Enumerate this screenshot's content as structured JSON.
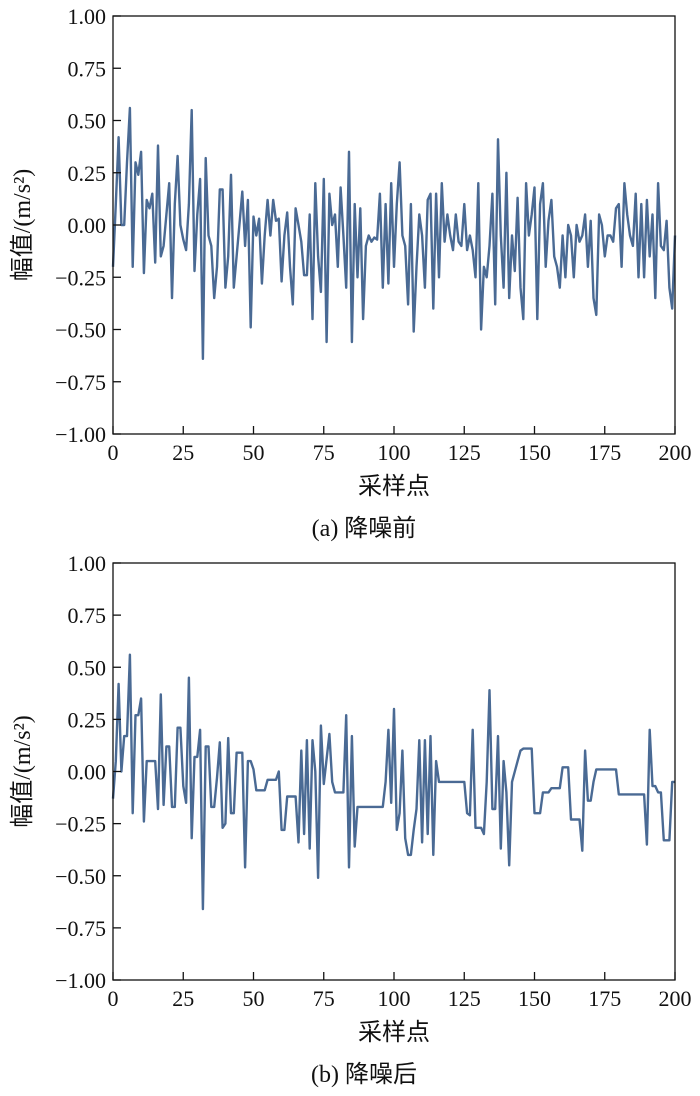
{
  "chart_data": [
    {
      "type": "line",
      "caption": "(a) 降噪前",
      "xlabel": "采样点",
      "ylabel": "幅值/(m/s²)",
      "xlim": [
        0,
        200
      ],
      "ylim": [
        -1,
        1
      ],
      "xticks": [
        "0",
        "25",
        "50",
        "75",
        "100",
        "125",
        "150",
        "175",
        "200"
      ],
      "yticks": [
        "1.00",
        "0.75",
        "0.50",
        "0.25",
        "0.00",
        "−0.25",
        "−0.50",
        "−0.75",
        "−1.00"
      ],
      "grid": false,
      "color": "#4a6a94",
      "series": [
        {
          "name": "降噪前",
          "values": [
            -0.2,
            0.1,
            0.42,
            0.0,
            0.0,
            0.3,
            0.56,
            -0.2,
            0.3,
            0.24,
            0.35,
            -0.23,
            0.12,
            0.08,
            0.15,
            -0.18,
            0.38,
            -0.15,
            -0.1,
            0.05,
            0.2,
            -0.35,
            0.1,
            0.33,
            0.0,
            -0.07,
            -0.12,
            0.1,
            0.55,
            -0.22,
            0.05,
            0.22,
            -0.64,
            0.32,
            -0.05,
            -0.1,
            -0.35,
            -0.2,
            0.17,
            0.17,
            -0.3,
            -0.15,
            0.24,
            -0.3,
            -0.15,
            0.0,
            0.16,
            -0.1,
            0.12,
            -0.49,
            0.04,
            -0.05,
            0.03,
            -0.28,
            -0.05,
            0.12,
            -0.05,
            0.12,
            0.02,
            0.03,
            -0.27,
            -0.05,
            0.06,
            -0.2,
            -0.38,
            0.08,
            0.0,
            -0.08,
            -0.24,
            -0.24,
            0.05,
            -0.45,
            0.2,
            -0.15,
            -0.32,
            0.22,
            -0.56,
            0.15,
            0.0,
            0.05,
            -0.2,
            0.18,
            -0.05,
            -0.3,
            0.35,
            -0.56,
            0.1,
            -0.25,
            0.08,
            -0.45,
            -0.1,
            -0.05,
            -0.08,
            -0.06,
            -0.07,
            0.15,
            -0.3,
            0.1,
            -0.28,
            0.2,
            -0.2,
            0.1,
            0.3,
            -0.05,
            -0.1,
            -0.38,
            0.1,
            -0.51,
            -0.2,
            0.05,
            -0.05,
            -0.3,
            0.12,
            0.15,
            -0.4,
            0.15,
            -0.25,
            0.2,
            -0.08,
            0.05,
            -0.05,
            -0.12,
            0.05,
            -0.08,
            -0.1,
            0.1,
            -0.12,
            -0.05,
            -0.12,
            -0.25,
            0.2,
            -0.5,
            -0.2,
            -0.25,
            -0.1,
            0.15,
            -0.38,
            0.41,
            -0.05,
            -0.3,
            0.25,
            -0.35,
            -0.05,
            -0.22,
            0.13,
            -0.3,
            -0.45,
            0.2,
            -0.05,
            0.05,
            0.18,
            -0.45,
            0.1,
            0.2,
            -0.2,
            0.02,
            0.12,
            -0.15,
            -0.2,
            -0.3,
            -0.05,
            -0.25,
            0.0,
            -0.05,
            -0.25,
            0.0,
            -0.08,
            -0.05,
            0.05,
            -0.2,
            0.02,
            -0.35,
            -0.43,
            0.05,
            0.0,
            -0.15,
            -0.05,
            -0.05,
            -0.08,
            0.08,
            0.1,
            -0.2,
            0.2,
            0.05,
            -0.05,
            -0.1,
            0.15,
            -0.25,
            0.1,
            -0.25,
            0.12,
            -0.15,
            0.05,
            -0.35,
            0.2,
            -0.1,
            -0.12,
            0.02,
            -0.3,
            -0.4,
            -0.05
          ]
        }
      ]
    },
    {
      "type": "line",
      "caption": "(b) 降噪后",
      "xlabel": "采样点",
      "ylabel": "幅值/(m/s²)",
      "xlim": [
        0,
        200
      ],
      "ylim": [
        -1,
        1
      ],
      "xticks": [
        "0",
        "25",
        "50",
        "75",
        "100",
        "125",
        "150",
        "175",
        "200"
      ],
      "yticks": [
        "1.00",
        "0.75",
        "0.50",
        "0.25",
        "0.00",
        "−0.25",
        "−0.50",
        "−0.75",
        "−1.00"
      ],
      "grid": false,
      "color": "#4a6a94",
      "series": [
        {
          "name": "降噪后",
          "values": [
            -0.13,
            0.05,
            0.42,
            0.0,
            0.17,
            0.17,
            0.56,
            -0.2,
            0.27,
            0.27,
            0.35,
            -0.24,
            0.05,
            0.05,
            0.05,
            0.05,
            -0.18,
            0.37,
            -0.16,
            0.12,
            0.12,
            -0.17,
            -0.17,
            0.21,
            0.21,
            -0.07,
            -0.15,
            0.45,
            -0.32,
            0.07,
            0.07,
            0.2,
            -0.66,
            0.12,
            0.12,
            -0.17,
            -0.17,
            -0.03,
            0.14,
            -0.27,
            -0.25,
            0.16,
            -0.2,
            -0.2,
            0.09,
            0.09,
            0.09,
            -0.46,
            0.05,
            0.05,
            0.01,
            -0.09,
            -0.09,
            -0.09,
            -0.09,
            -0.04,
            -0.04,
            -0.04,
            -0.04,
            0.0,
            -0.28,
            -0.28,
            -0.12,
            -0.12,
            -0.12,
            -0.12,
            -0.34,
            0.1,
            -0.3,
            0.15,
            -0.37,
            0.15,
            0.0,
            -0.51,
            0.22,
            -0.06,
            0.06,
            0.18,
            -0.05,
            -0.1,
            -0.1,
            -0.1,
            -0.1,
            0.27,
            -0.46,
            0.17,
            -0.36,
            -0.17,
            -0.17,
            -0.17,
            -0.17,
            -0.17,
            -0.17,
            -0.17,
            -0.17,
            -0.17,
            -0.17,
            -0.05,
            0.2,
            -0.15,
            0.3,
            -0.28,
            -0.2,
            0.1,
            -0.32,
            -0.4,
            -0.4,
            -0.28,
            -0.18,
            0.15,
            -0.34,
            0.15,
            -0.3,
            0.17,
            -0.4,
            0.05,
            -0.05,
            -0.05,
            -0.05,
            -0.05,
            -0.05,
            -0.05,
            -0.05,
            -0.05,
            -0.05,
            -0.05,
            -0.2,
            -0.21,
            0.2,
            -0.27,
            -0.27,
            -0.27,
            -0.3,
            -0.05,
            0.39,
            -0.18,
            -0.18,
            0.17,
            -0.37,
            0.05,
            -0.1,
            -0.45,
            -0.05,
            0.0,
            0.05,
            0.1,
            0.11,
            0.11,
            0.11,
            0.11,
            -0.2,
            -0.2,
            -0.2,
            -0.1,
            -0.1,
            -0.1,
            -0.08,
            -0.08,
            -0.08,
            -0.08,
            0.02,
            0.02,
            0.02,
            -0.23,
            -0.23,
            -0.23,
            -0.23,
            -0.38,
            0.1,
            -0.14,
            -0.14,
            -0.05,
            0.01,
            0.01,
            0.01,
            0.01,
            0.01,
            0.01,
            0.01,
            0.01,
            -0.11,
            -0.11,
            -0.11,
            -0.11,
            -0.11,
            -0.11,
            -0.11,
            -0.11,
            -0.11,
            -0.11,
            -0.35,
            0.2,
            -0.07,
            -0.07,
            -0.1,
            -0.1,
            -0.33,
            -0.33,
            -0.33,
            -0.05,
            -0.05
          ]
        }
      ]
    }
  ]
}
